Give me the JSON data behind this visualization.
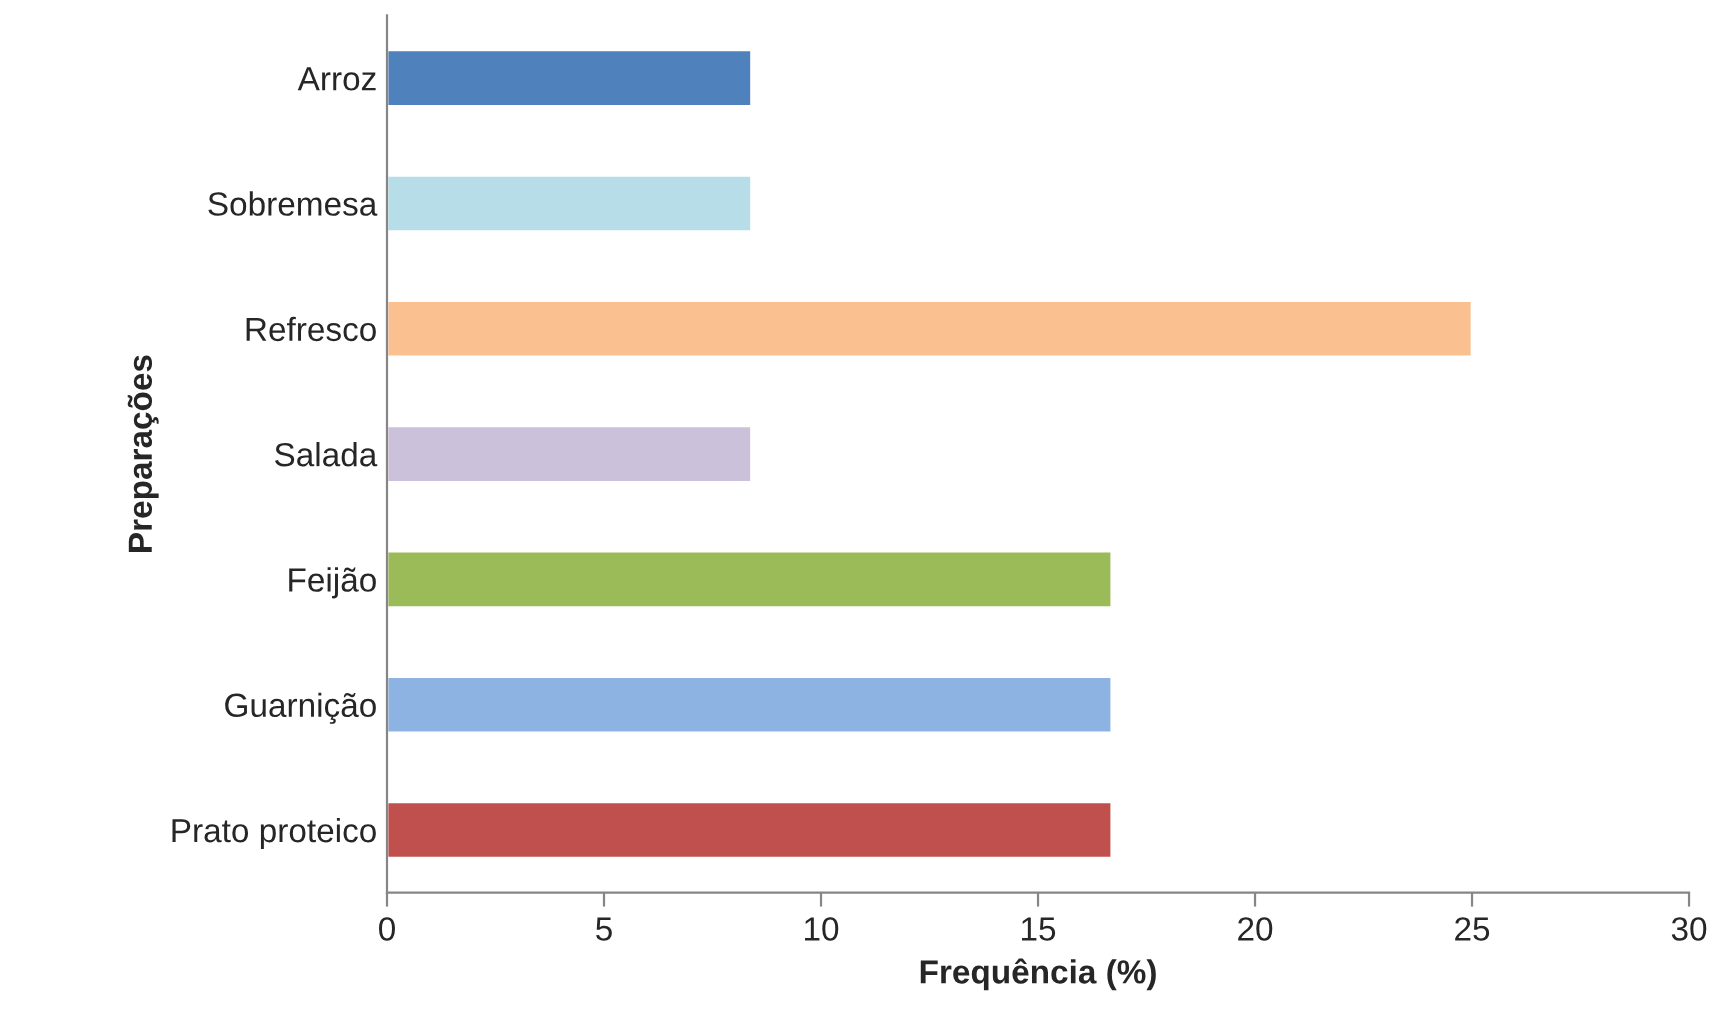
{
  "chart_data": {
    "type": "bar",
    "orientation": "horizontal",
    "xlabel": "Frequência (%)",
    "ylabel": "Preparações",
    "categories": [
      "Arroz",
      "Sobremesa",
      "Refresco",
      "Salada",
      "Feijão",
      "Guarnição",
      "Prato proteico"
    ],
    "values": [
      8.4,
      8.4,
      25.0,
      8.4,
      16.7,
      16.7,
      16.7
    ],
    "colors": [
      "#4f81bd",
      "#b7dde8",
      "#fac090",
      "#ccc1da",
      "#9bbb59",
      "#8db3e2",
      "#c0504d"
    ],
    "xlim": [
      0,
      30
    ],
    "xticks": [
      0,
      5,
      10,
      15,
      20,
      25,
      30
    ],
    "grid": false
  }
}
